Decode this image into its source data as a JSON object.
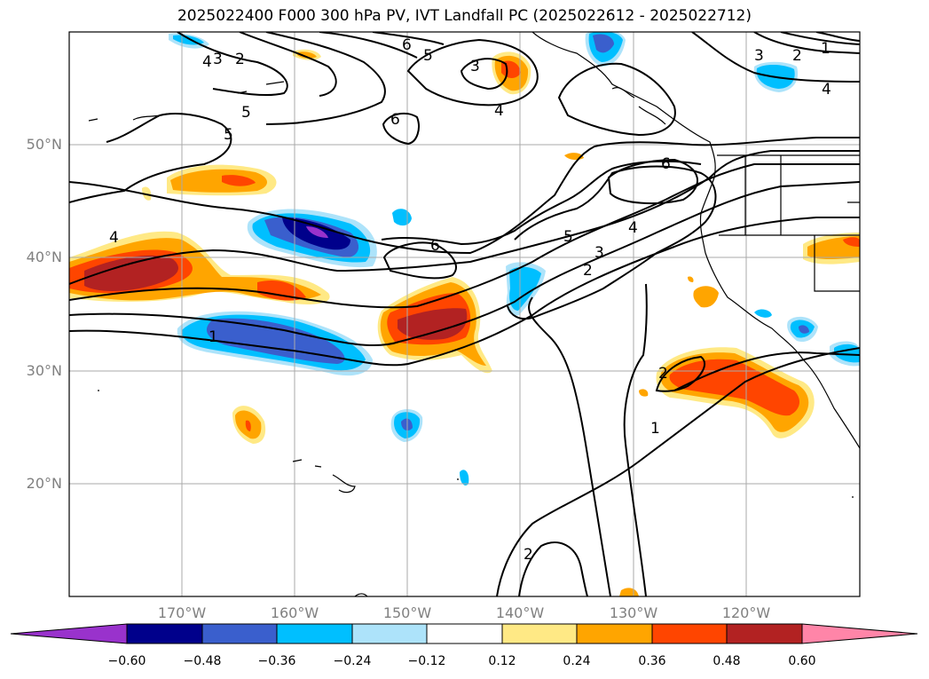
{
  "title": "2025022400 F000 300 hPa PV, IVT Landfall PC (2025022612 - 2025022712)",
  "lat_labels": [
    "50°N",
    "40°N",
    "30°N",
    "20°N"
  ],
  "lon_labels": [
    "170°W",
    "160°W",
    "150°W",
    "140°W",
    "130°W",
    "120°W"
  ],
  "colorbar": {
    "ticks": [
      "−0.60",
      "−0.48",
      "−0.36",
      "−0.24",
      "−0.12",
      "0.12",
      "0.24",
      "0.36",
      "0.48",
      "0.60"
    ],
    "colors": [
      "#9932CC",
      "#00008B",
      "#3A5FCD",
      "#00BFFF",
      "#ADE3FA",
      "#FFFFFF",
      "#FFE985",
      "#FFA500",
      "#FF4500",
      "#B22222",
      "#FF85A8"
    ]
  },
  "contour_labels": [
    "1",
    "2",
    "3",
    "4",
    "5",
    "6"
  ]
}
